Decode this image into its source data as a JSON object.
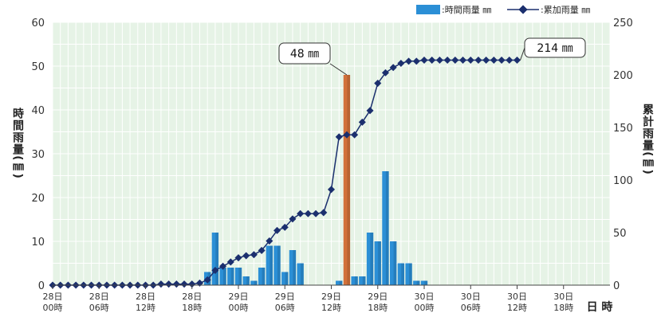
{
  "chart_data": {
    "type": "bar",
    "legend": {
      "placement": "top-right",
      "bar_label": ":時間雨量 ㎜",
      "line_label": ":累加雨量 ㎜"
    },
    "y_left": {
      "title": "時間雨量(㎜)",
      "ylim": [
        0,
        60
      ],
      "ticks": [
        0,
        10,
        20,
        30,
        40,
        50,
        60
      ]
    },
    "y_right": {
      "title": "累計雨量(㎜)",
      "ylim": [
        0,
        250
      ],
      "ticks": [
        0,
        50,
        100,
        150,
        200,
        250
      ]
    },
    "x_axis": {
      "title": "日 時",
      "hour_range": [
        0,
        72
      ],
      "ticks": [
        {
          "hour": 0,
          "day": "28日",
          "time": "00時"
        },
        {
          "hour": 6,
          "day": "28日",
          "time": "06時"
        },
        {
          "hour": 12,
          "day": "28日",
          "time": "12時"
        },
        {
          "hour": 18,
          "day": "28日",
          "time": "18時"
        },
        {
          "hour": 24,
          "day": "29日",
          "time": "00時"
        },
        {
          "hour": 30,
          "day": "29日",
          "time": "06時"
        },
        {
          "hour": 36,
          "day": "29日",
          "time": "12時"
        },
        {
          "hour": 42,
          "day": "29日",
          "time": "18時"
        },
        {
          "hour": 48,
          "day": "30日",
          "time": "00時"
        },
        {
          "hour": 54,
          "day": "30日",
          "time": "06時"
        },
        {
          "hour": 60,
          "day": "30日",
          "time": "12時"
        },
        {
          "hour": 66,
          "day": "30日",
          "time": "18時"
        }
      ]
    },
    "grid": true,
    "colors": {
      "plot_bg": "#e6f3e6",
      "grid": "#ffffff",
      "bar": "#2b8fd6",
      "bar_peak": "#d2713a",
      "line": "#1b2f6e"
    },
    "series": [
      {
        "kind": "bar",
        "axis": "left",
        "x": [
          20,
          21,
          22,
          23,
          24,
          25,
          26,
          27,
          28,
          29,
          30,
          31,
          32,
          37,
          38,
          39,
          40,
          41,
          42,
          43,
          44,
          45,
          46,
          47,
          48
        ],
        "values": [
          3,
          12,
          4,
          4,
          4,
          2,
          1,
          4,
          9,
          9,
          3,
          8,
          5,
          1,
          48,
          2,
          2,
          12,
          10,
          26,
          10,
          5,
          5,
          1,
          1
        ],
        "peak_index": 14
      },
      {
        "kind": "line",
        "axis": "right",
        "x": [
          0,
          1,
          2,
          3,
          4,
          5,
          6,
          7,
          8,
          9,
          10,
          11,
          12,
          13,
          14,
          15,
          16,
          17,
          18,
          19,
          20,
          21,
          22,
          23,
          24,
          25,
          26,
          27,
          28,
          29,
          30,
          31,
          32,
          33,
          34,
          35,
          36,
          37,
          38,
          39,
          40,
          41,
          42,
          43,
          44,
          45,
          46,
          47,
          48,
          49,
          50,
          51,
          52,
          53,
          54,
          55,
          56,
          57,
          58,
          59,
          60
        ],
        "values": [
          0,
          0,
          0,
          0,
          0,
          0,
          0,
          0,
          0,
          0,
          0,
          0,
          0,
          0,
          1,
          1,
          1,
          1,
          1,
          2,
          5,
          14,
          18,
          22,
          26,
          28,
          29,
          33,
          42,
          52,
          55,
          63,
          68,
          68,
          68,
          69,
          91,
          141,
          143,
          143,
          155,
          166,
          192,
          202,
          207,
          211,
          213,
          213,
          214,
          214,
          214,
          214,
          214,
          214,
          214,
          214,
          214,
          214,
          214,
          214,
          214
        ]
      }
    ],
    "annotations": [
      {
        "text": "48 ㎜",
        "target_series": 0,
        "target_index": 14
      },
      {
        "text": "214 ㎜",
        "target_series": 1,
        "target_index": 60
      }
    ]
  }
}
